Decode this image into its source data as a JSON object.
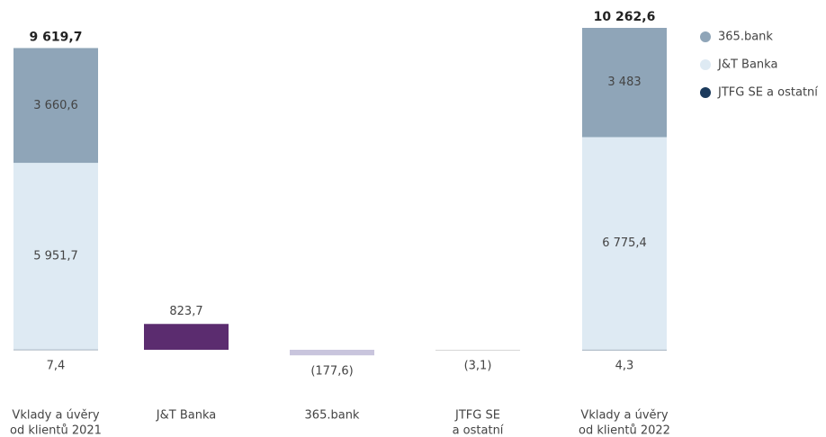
{
  "chart_data": {
    "type": "waterfall",
    "categories": [
      [
        "Vklady a úvěry",
        "od klientů 2021"
      ],
      [
        "J&T Banka"
      ],
      [
        "365.bank"
      ],
      [
        "JTFG SE",
        "a ostatní"
      ],
      [
        "Vklady a úvěry",
        "od klientů 2022"
      ]
    ],
    "series": [
      {
        "name": "JTFG SE a ostatní",
        "color": "#1b3a5c",
        "values": [
          7.4,
          null,
          null,
          null,
          4.3
        ],
        "value_labels": [
          "7,4",
          null,
          null,
          null,
          "4,3"
        ]
      },
      {
        "name": "J&T Banka",
        "color": "#deeaf3",
        "values": [
          5951.7,
          null,
          null,
          null,
          6775.4
        ],
        "value_labels": [
          "5 951,7",
          null,
          null,
          null,
          "6 775,4"
        ]
      },
      {
        "name": "365.bank",
        "color": "#8fa5b8",
        "values": [
          3660.6,
          null,
          null,
          null,
          3483
        ],
        "value_labels": [
          "3 660,6",
          null,
          null,
          null,
          "3 483"
        ]
      }
    ],
    "changes": {
      "values": [
        null,
        823.7,
        -177.6,
        -3.1,
        null
      ],
      "value_labels": [
        null,
        "823,7",
        "(177,6)",
        "(3,1)",
        null
      ],
      "colors": [
        null,
        "#5b2c6f",
        "#c9c5dd",
        "#d6d6d6",
        null
      ]
    },
    "totals": {
      "values": [
        9619.7,
        null,
        null,
        null,
        10262.6
      ],
      "value_labels": [
        "9 619,7",
        null,
        null,
        null,
        "10 262,6"
      ]
    },
    "legend": "top-right"
  }
}
